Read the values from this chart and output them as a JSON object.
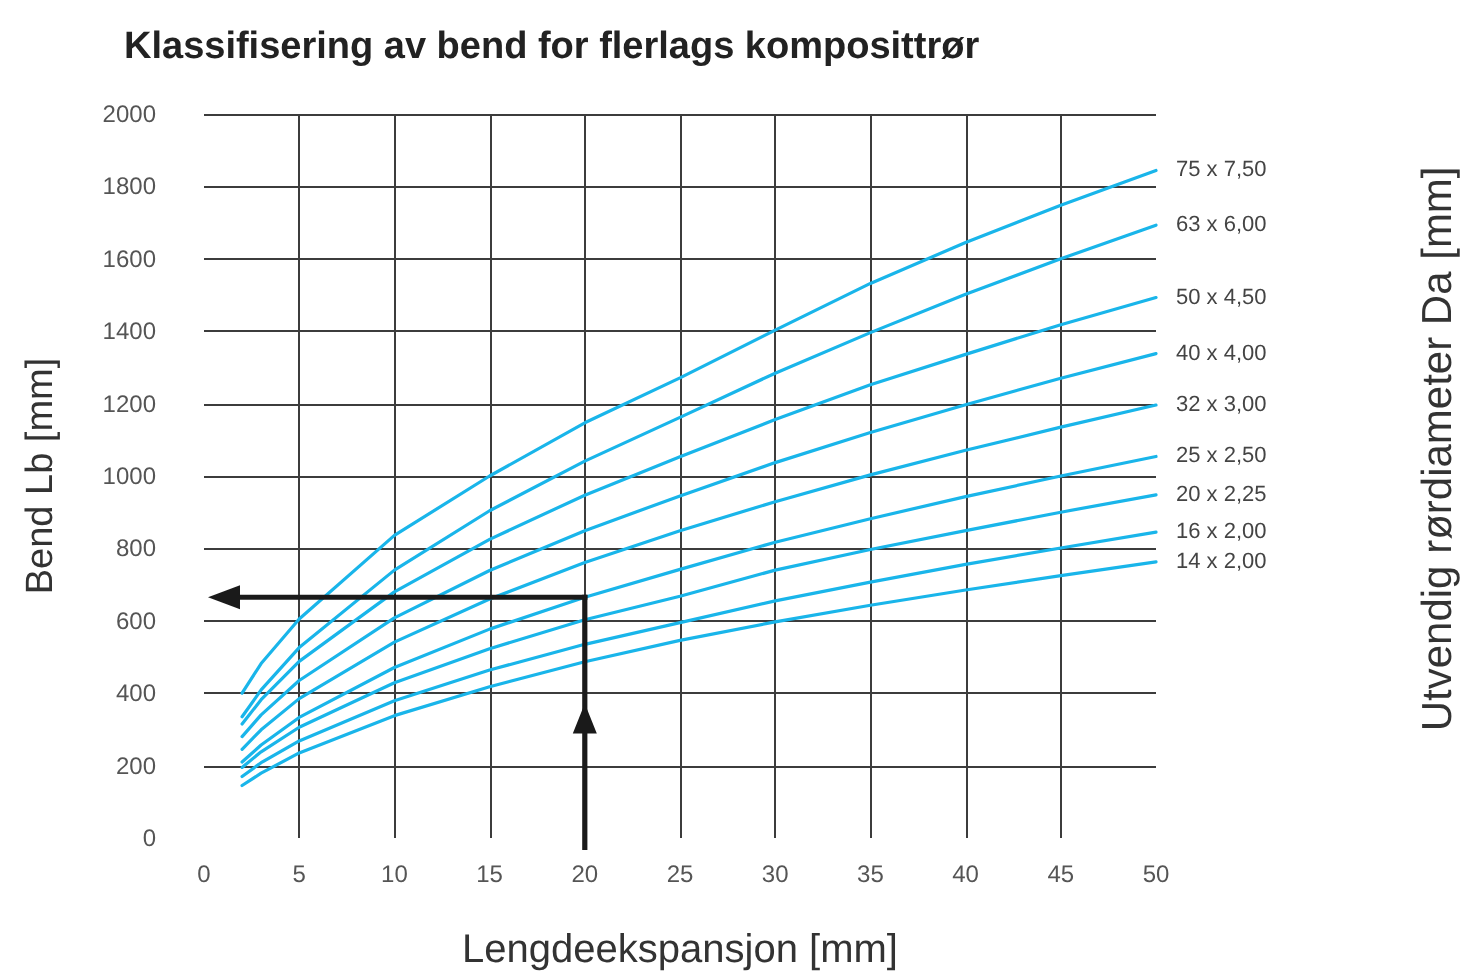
{
  "chart_data": {
    "type": "line",
    "title": "Klassifisering av bend for flerlags komposittrør",
    "xlabel": "Lengdeekspansjon [mm]",
    "ylabel": "Bend Lb [mm]",
    "annotations": [
      "Utvendig rørdiameter Da [mm]"
    ],
    "x": [
      2,
      3,
      5,
      10,
      15,
      20,
      25,
      30,
      35,
      40,
      45,
      50
    ],
    "series": [
      {
        "name": "75 x 7,50",
        "color": "#19b5ea",
        "values": [
          400,
          482,
          605,
          836,
          1000,
          1147,
          1271,
          1403,
          1532,
          1645,
          1748,
          1844
        ]
      },
      {
        "name": "63 x 6,00",
        "color": "#19b5ea",
        "values": [
          335,
          409,
          526,
          740,
          904,
          1041,
          1162,
          1284,
          1396,
          1502,
          1600,
          1693
        ]
      },
      {
        "name": "50 x 4,50",
        "color": "#19b5ea",
        "values": [
          315,
          382,
          488,
          680,
          825,
          947,
          1053,
          1156,
          1252,
          1336,
          1418,
          1493
        ]
      },
      {
        "name": "40 x 4,00",
        "color": "#19b5ea",
        "values": [
          280,
          340,
          435,
          608,
          739,
          849,
          945,
          1037,
          1120,
          1197,
          1270,
          1338
        ]
      },
      {
        "name": "32 x 3,00",
        "color": "#19b5ea",
        "values": [
          245,
          299,
          385,
          541,
          660,
          761,
          849,
          929,
          1003,
          1071,
          1135,
          1196
        ]
      },
      {
        "name": "25 x 2,50",
        "color": "#19b5ea",
        "values": [
          210,
          257,
          333,
          471,
          577,
          665,
          742,
          817,
          882,
          943,
          1000,
          1054
        ]
      },
      {
        "name": "20 x 2,25",
        "color": "#19b5ea",
        "values": [
          195,
          238,
          306,
          429,
          523,
          603,
          668,
          740,
          797,
          849,
          900,
          948
        ]
      },
      {
        "name": "16 x 2,00",
        "color": "#19b5ea",
        "values": [
          170,
          208,
          268,
          379,
          464,
          535,
          595,
          655,
          707,
          756,
          801,
          845
        ]
      },
      {
        "name": "14 x 2,00",
        "color": "#19b5ea",
        "values": [
          145,
          179,
          235,
          338,
          418,
          487,
          546,
          597,
          643,
          685,
          725,
          763
        ]
      }
    ],
    "xlim": [
      0,
      50
    ],
    "xticks": [
      0,
      5,
      10,
      15,
      20,
      25,
      30,
      35,
      40,
      45,
      50
    ],
    "ylim": [
      0,
      2000
    ],
    "yticks": [
      0,
      200,
      400,
      600,
      800,
      1000,
      1200,
      1400,
      1600,
      1800,
      2000
    ],
    "grid": true,
    "marker": "none"
  }
}
